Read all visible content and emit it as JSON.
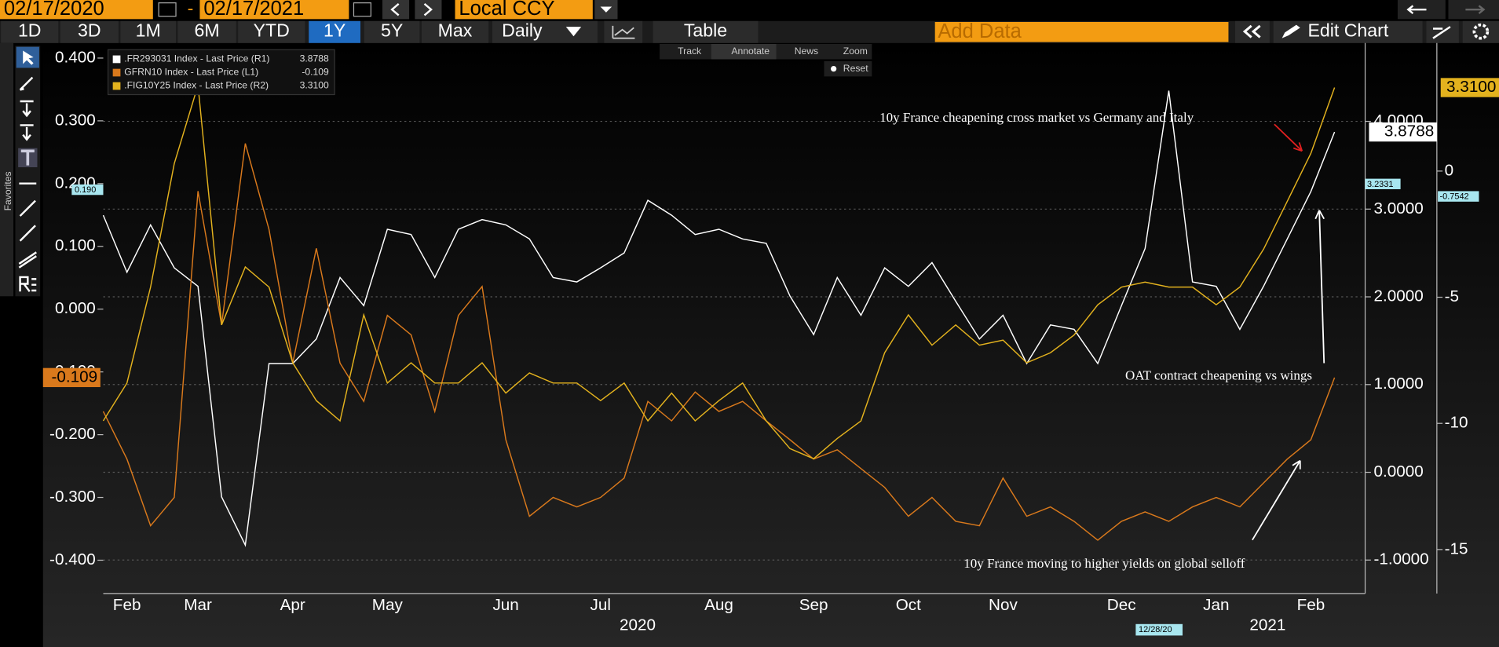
{
  "toolbar": {
    "start_date": "02/17/2020",
    "end_date": "02/17/2021",
    "currency": "Local CCY",
    "periods": [
      "1D",
      "3D",
      "1M",
      "6M",
      "YTD",
      "1Y",
      "5Y",
      "Max"
    ],
    "frequency": "Daily",
    "table": "Table",
    "add_data": "Add Data",
    "edit_chart": "Edit Chart",
    "side_tab": "Favorites"
  },
  "chart_tools": [
    "Track",
    "Annotate",
    "News",
    "Zoom",
    "Reset"
  ],
  "chart_data": {
    "type": "line",
    "categories": [
      null,
      "Feb",
      null,
      null,
      "Mar",
      null,
      null,
      null,
      "Apr",
      null,
      null,
      null,
      "May",
      null,
      null,
      null,
      null,
      "Jun",
      null,
      null,
      null,
      "Jul",
      null,
      null,
      null,
      null,
      "Aug",
      null,
      null,
      null,
      "Sep",
      null,
      null,
      null,
      "Oct",
      null,
      null,
      null,
      "Nov",
      null,
      null,
      null,
      null,
      "Dec",
      null,
      null,
      null,
      "Jan",
      null,
      null,
      null,
      "Feb",
      null
    ],
    "year_labels": [
      "2020",
      "2021"
    ],
    "ylim": [
      -0.453,
      0.424
    ],
    "yticks": [
      {
        "value": 0.4,
        "label": "0.400"
      },
      {
        "value": 0.3,
        "label": "0.300"
      },
      {
        "value": 0.2,
        "label": "0.200"
      },
      {
        "value": 0.1,
        "label": "0.100"
      },
      {
        "value": 0,
        "label": "0.000"
      },
      {
        "value": -0.1,
        "label": "-0.100"
      },
      {
        "value": -0.2,
        "label": "-0.200"
      },
      {
        "value": -0.3,
        "label": "-0.300"
      },
      {
        "value": -0.4,
        "label": "-0.400"
      }
    ],
    "y2lim": [
      -1.381,
      4.893
    ],
    "y2ticks": [
      {
        "value": 4,
        "label": "4.0000"
      },
      {
        "value": 3,
        "label": "3.0000"
      },
      {
        "value": 2,
        "label": "2.0000"
      },
      {
        "value": 1,
        "label": "1.0000"
      },
      {
        "value": 0,
        "label": "0.0000"
      },
      {
        "value": -1,
        "label": "-1.0000"
      }
    ],
    "y3lim": [
      -16.742,
      5.076
    ],
    "y3ticks": [
      0,
      -5,
      -10,
      -15
    ],
    "grid": true,
    "series": [
      {
        "name": ".FR293031 Index - Last Price (R1)",
        "last_label": "3.8788",
        "color": "#ffffff",
        "axis": "y2",
        "values": [
          2.93,
          2.28,
          2.82,
          2.33,
          2.12,
          -0.28,
          -0.83,
          1.24,
          1.24,
          1.52,
          2.22,
          1.9,
          2.77,
          2.71,
          2.22,
          2.77,
          2.88,
          2.82,
          2.66,
          2.22,
          2.17,
          2.33,
          2.5,
          3.1,
          2.93,
          2.71,
          2.77,
          2.66,
          2.61,
          2.01,
          1.57,
          2.22,
          1.79,
          2.33,
          2.12,
          2.39,
          1.95,
          1.52,
          1.79,
          1.24,
          1.68,
          1.63,
          1.24,
          1.9,
          2.55,
          4.35,
          2.17,
          2.12,
          1.63,
          2.12,
          2.66,
          3.2,
          3.8788
        ]
      },
      {
        "name": "GFRN10 Index - Last Price (L1)",
        "last_label": "-0.109",
        "color": "#d9791c",
        "axis": "y",
        "values": [
          -0.163,
          -0.239,
          -0.345,
          -0.3,
          0.188,
          -0.025,
          0.264,
          0.127,
          -0.086,
          0.097,
          -0.086,
          -0.147,
          -0.01,
          -0.041,
          -0.163,
          -0.01,
          0.036,
          -0.208,
          -0.33,
          -0.3,
          -0.315,
          -0.3,
          -0.269,
          -0.147,
          -0.178,
          -0.132,
          -0.163,
          -0.147,
          -0.178,
          -0.208,
          -0.239,
          -0.224,
          -0.254,
          -0.284,
          -0.33,
          -0.3,
          -0.338,
          -0.345,
          -0.269,
          -0.33,
          -0.315,
          -0.338,
          -0.368,
          -0.338,
          -0.323,
          -0.338,
          -0.315,
          -0.3,
          -0.315,
          -0.277,
          -0.239,
          -0.208,
          -0.109
        ]
      },
      {
        "name": ".FIG10Y25 Index - Last Price (R2)",
        "last_label": "3.3100",
        "color": "#e3b21e",
        "axis": "y3",
        "values": [
          -9.9,
          -8.4,
          -4.6,
          0.3,
          3.4,
          -6.1,
          -3.8,
          -4.6,
          -7.6,
          -9.1,
          -9.9,
          -5.7,
          -8.4,
          -7.6,
          -8.4,
          -8.4,
          -7.6,
          -8.8,
          -8.0,
          -8.4,
          -8.4,
          -9.1,
          -8.4,
          -9.9,
          -8.8,
          -9.9,
          -9.1,
          -8.4,
          -9.9,
          -11.0,
          -11.4,
          -10.6,
          -9.9,
          -7.2,
          -5.7,
          -6.9,
          -6.1,
          -6.9,
          -6.7,
          -7.6,
          -7.2,
          -6.5,
          -5.3,
          -4.6,
          -4.4,
          -4.6,
          -4.6,
          -5.3,
          -4.6,
          -3.1,
          -1.2,
          0.7,
          3.31
        ]
      }
    ],
    "crosshair": {
      "left": "0.190",
      "right1": "3.2331",
      "right2": "-0.7542",
      "date": "12/28/20"
    },
    "annotations": [
      "10y France cheapening cross market vs Germany and Italy",
      "OAT contract cheapening vs wings",
      "10y France moving to higher yields on global selloff"
    ]
  }
}
